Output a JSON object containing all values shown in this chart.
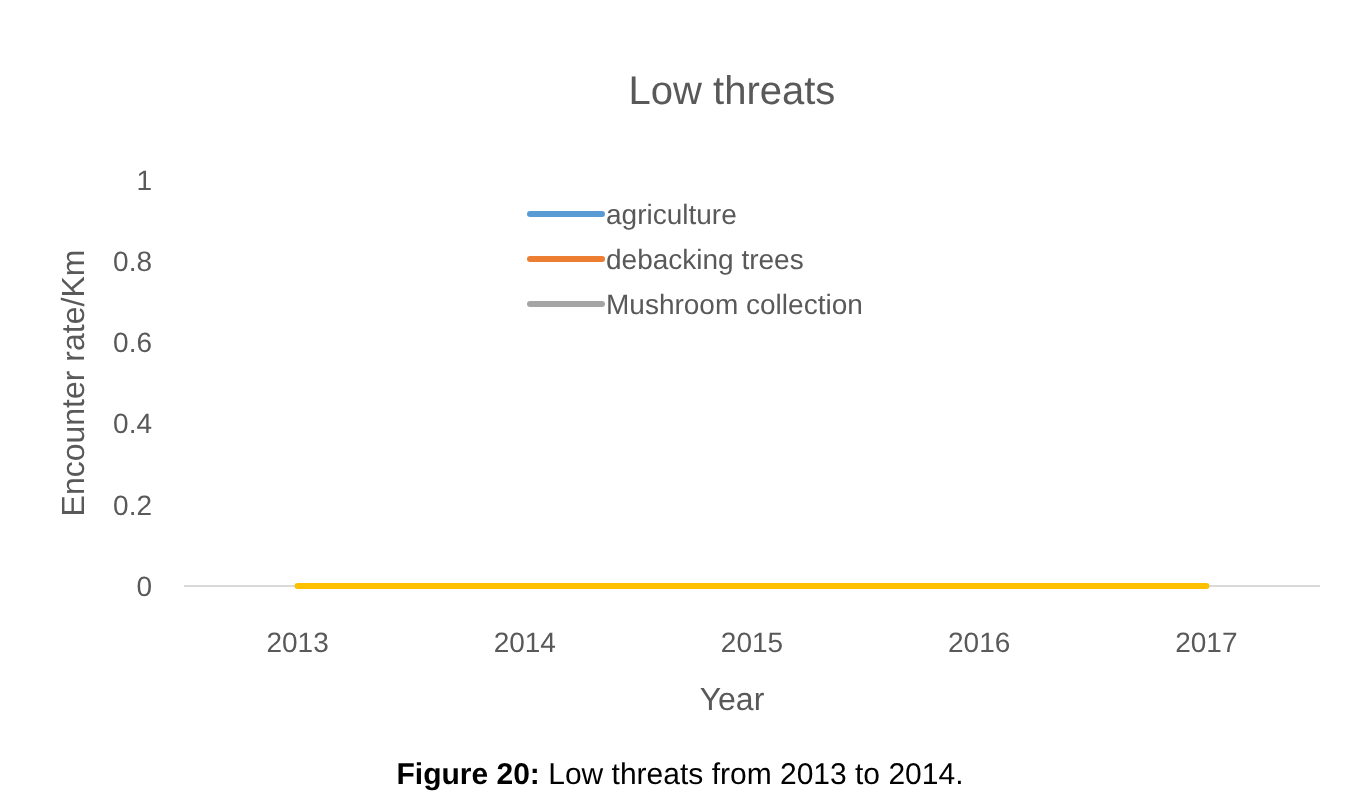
{
  "chart_data": {
    "type": "line",
    "title": "Low threats",
    "xlabel": "Year",
    "ylabel": "Encounter rate/Km",
    "categories": [
      "2013",
      "2014",
      "2015",
      "2016",
      "2017"
    ],
    "series": [
      {
        "name": "agriculture",
        "color": "#5b9bd5",
        "values": [
          null,
          null,
          null,
          null,
          null
        ]
      },
      {
        "name": "debacking trees",
        "color": "#ed7d31",
        "values": [
          null,
          null,
          null,
          null,
          null
        ]
      },
      {
        "name": "Mushroom collection",
        "color": "#a5a5a5",
        "values": [
          null,
          null,
          null,
          null,
          null
        ]
      },
      {
        "color": "#ffc000",
        "values": [
          0,
          0,
          0,
          0,
          0
        ]
      }
    ],
    "ylim": [
      0,
      1
    ],
    "yticks": [
      0,
      0.2,
      0.4,
      0.6,
      0.8,
      1
    ],
    "grid": false,
    "legend": "top",
    "marker": "none",
    "line_style": "solid",
    "annotations": [
      "Figure 20: Low threats from 2013 to 2014."
    ]
  }
}
